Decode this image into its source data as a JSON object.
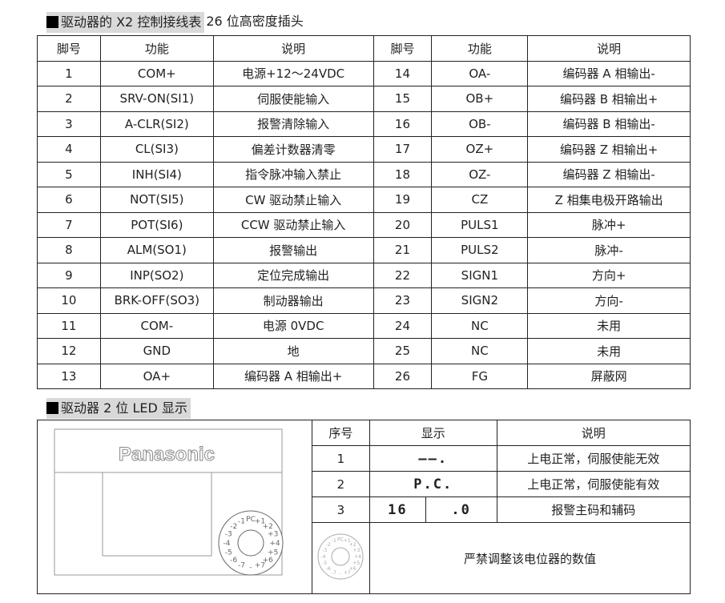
{
  "section1": {
    "title": "驱动器的 X2 控制接线表",
    "suffix": "26 位高密度插头"
  },
  "table1": {
    "headers": [
      "脚号",
      "功能",
      "说明",
      "脚号",
      "功能",
      "说明"
    ],
    "rows": [
      [
        "1",
        "COM+",
        "电源+12～24VDC",
        "14",
        "OA-",
        "编码器 A 相输出-"
      ],
      [
        "2",
        "SRV-ON(SI1)",
        "伺服使能输入",
        "15",
        "OB+",
        "编码器 B 相输出+"
      ],
      [
        "3",
        "A-CLR(SI2)",
        "报警清除输入",
        "16",
        "OB-",
        "编码器 B 相输出-"
      ],
      [
        "4",
        "CL(SI3)",
        "偏差计数器清零",
        "17",
        "OZ+",
        "编码器 Z 相输出+"
      ],
      [
        "5",
        "INH(SI4)",
        "指令脉冲输入禁止",
        "18",
        "OZ-",
        "编码器 Z 相输出-"
      ],
      [
        "6",
        "NOT(SI5)",
        "CW 驱动禁止输入",
        "19",
        "CZ",
        "Z 相集电极开路输出"
      ],
      [
        "7",
        "POT(SI6)",
        "CCW 驱动禁止输入",
        "20",
        "PULS1",
        "脉冲+"
      ],
      [
        "8",
        "ALM(SO1)",
        "报警输出",
        "21",
        "PULS2",
        "脉冲-"
      ],
      [
        "9",
        "INP(SO2)",
        "定位完成输出",
        "22",
        "SIGN1",
        "方向+"
      ],
      [
        "10",
        "BRK-OFF(SO3)",
        "制动器输出",
        "23",
        "SIGN2",
        "方向-"
      ],
      [
        "11",
        "COM-",
        "电源 0VDC",
        "24",
        "NC",
        "未用"
      ],
      [
        "12",
        "GND",
        "地",
        "25",
        "NC",
        "未用"
      ],
      [
        "13",
        "OA+",
        "编码器 A 相输出+",
        "26",
        "FG",
        "屏蔽网"
      ]
    ]
  },
  "section2": {
    "title": "驱动器 2 位 LED 显示"
  },
  "panel": {
    "brand": "Panasonic",
    "dial_labels": [
      "PC",
      "+1",
      "+2",
      "+3",
      "+4",
      "+5",
      "+6",
      "+7",
      "-",
      "-7",
      "-6",
      "-5",
      "-4",
      "-3",
      "-2",
      "-1"
    ]
  },
  "table2": {
    "headers": [
      "序号",
      "显示",
      "说明"
    ],
    "rows": [
      {
        "no": "1",
        "display": "——.",
        "desc": "上电正常，伺服使能无效"
      },
      {
        "no": "2",
        "display": "P.C.",
        "desc": "上电正常，伺服使能有效"
      },
      {
        "no": "3",
        "display_main": "16",
        "display_sub": ".0",
        "desc": "报警主码和辅码"
      }
    ],
    "note": "严禁调整该电位器的数值"
  }
}
